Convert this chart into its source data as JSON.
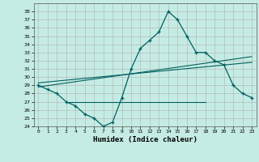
{
  "xlabel": "Humidex (Indice chaleur)",
  "bg_color": "#c5ece4",
  "grid_color": "#b0b0b0",
  "line_color": "#006060",
  "xlim": [
    -0.5,
    23.5
  ],
  "ylim": [
    24,
    39
  ],
  "yticks": [
    24,
    25,
    26,
    27,
    28,
    29,
    30,
    31,
    32,
    33,
    34,
    35,
    36,
    37,
    38
  ],
  "xticks": [
    0,
    1,
    2,
    3,
    4,
    5,
    6,
    7,
    8,
    9,
    10,
    11,
    12,
    13,
    14,
    15,
    16,
    17,
    18,
    19,
    20,
    21,
    22,
    23
  ],
  "main_x": [
    0,
    1,
    2,
    3,
    4,
    5,
    6,
    7,
    8,
    9,
    10,
    11,
    12,
    13,
    14,
    15,
    16,
    17,
    18,
    19,
    20,
    21,
    22,
    23
  ],
  "main_y": [
    29.0,
    28.5,
    28.0,
    27.0,
    26.5,
    25.5,
    25.0,
    24.0,
    24.5,
    27.5,
    31.0,
    33.5,
    34.5,
    35.5,
    38.0,
    37.0,
    35.0,
    33.0,
    33.0,
    32.0,
    31.5,
    29.0,
    28.0,
    27.5
  ],
  "line1_x": [
    0,
    23
  ],
  "line1_y": [
    28.8,
    32.5
  ],
  "line2_x": [
    0,
    23
  ],
  "line2_y": [
    29.3,
    31.8
  ],
  "hline_x": [
    3,
    18
  ],
  "hline_y": [
    27.0,
    27.0
  ]
}
